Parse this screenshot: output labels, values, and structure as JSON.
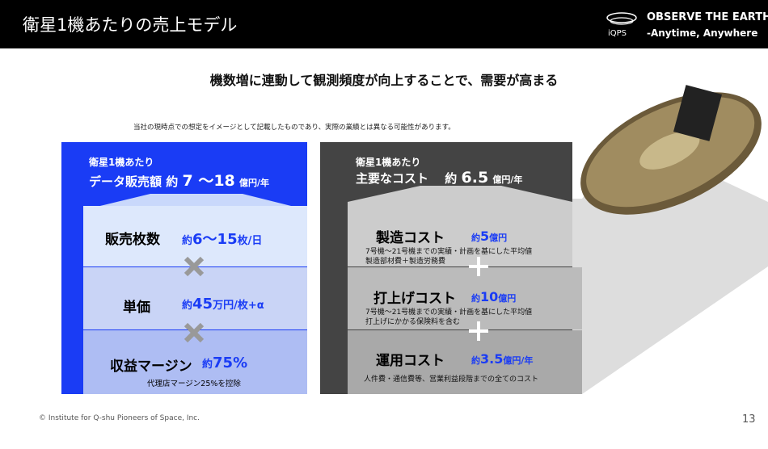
{
  "header": {
    "title": "衛星1機あたりの売上モデル",
    "logo_text": "iQPS",
    "tagline": [
      "OBSERVE THE EARTH",
      "-Anytime, Anywhere"
    ]
  },
  "headline": "機数増に連動して観測頻度が向上することで、需要が高まる",
  "disclaimer": "当社の現時点での想定をイメージとして記載したものであり、実際の業績とは異なる可能性があります。",
  "revenue": {
    "heading": "衛星1機あたり",
    "label": "データ販売額",
    "amount": [
      "約",
      "7 〜18",
      "億円/年"
    ],
    "rows": [
      {
        "label": "販売枚数",
        "value": [
          "約",
          "6〜15",
          "枚/日"
        ]
      },
      {
        "label": "単価",
        "value": [
          "約",
          "45",
          "万円/枚+α"
        ]
      },
      {
        "label": "収益マージン",
        "value": [
          "約",
          "75%"
        ],
        "note": "代理店マージン25%を控除"
      }
    ]
  },
  "cost": {
    "heading": "衛星1機あたり",
    "label": "主要なコスト",
    "amount": [
      "約",
      "6.5",
      "億円/年"
    ],
    "rows": [
      {
        "label": "製造コスト",
        "value": [
          "約",
          "5",
          "億円"
        ],
        "notes": [
          "7号機～21号機までの実績・計画を基にした平均値",
          "製造部材費＋製造労務費"
        ]
      },
      {
        "label": "打上げコスト",
        "value": [
          "約",
          "10",
          "億円"
        ],
        "notes": [
          "7号機～21号機までの実績・計画を基にした平均値",
          "打上げにかかる保険料を含む"
        ]
      },
      {
        "label": "運用コスト",
        "value": [
          "約",
          "3.5",
          "億円/年"
        ],
        "notes": [
          "人件費・通信費等、営業利益段階までの全てのコスト"
        ]
      }
    ]
  },
  "footer": {
    "copyright": "© Institute for Q-shu Pioneers of Space, Inc.",
    "page": 13
  }
}
